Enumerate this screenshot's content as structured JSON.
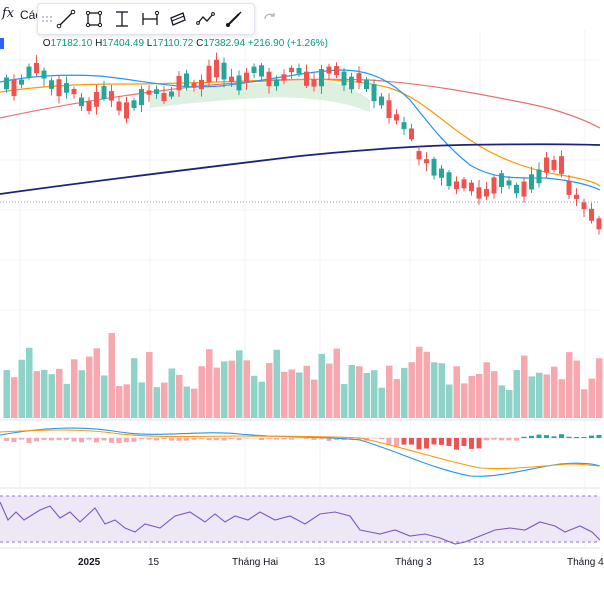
{
  "toolbar": {
    "fx_label": "fx",
    "tab_label": "Các",
    "tools": [
      "trend-line-icon",
      "rectangle-icon",
      "vertical-range-icon",
      "horizontal-range-icon",
      "parallel-channel-icon",
      "path-icon",
      "brush-icon"
    ],
    "redo_icon": "redo-icon"
  },
  "ohlc": {
    "o_key": "O",
    "o_val": "17182.10",
    "h_key": "H",
    "h_val": "17404.49",
    "l_key": "L",
    "l_val": "17110.72",
    "c_key": "C",
    "c_val": "17382.94",
    "change": "+216.90 (+1.26%)"
  },
  "time_axis": [
    "2025",
    "15",
    "Tháng Hai",
    "13",
    "Tháng 3",
    "13",
    "Tháng 4"
  ],
  "colors": {
    "up": "#26a69a",
    "down": "#ef5350",
    "up_volume": "#8fd3c8",
    "down_volume": "#f7a7ae",
    "ma_fast": "#2196f3",
    "ma_mid": "#ff9800",
    "ma_slow": "#e57373",
    "ma_long": "#1a237e",
    "cloud": "#c8e6c9",
    "rsi": "#7e57c2",
    "rsi_band": "#ede7f6"
  },
  "chart_data": {
    "type": "candlestick",
    "candles_close_trend": [
      10,
      9,
      8,
      10,
      12,
      11,
      13,
      14,
      12,
      11,
      12,
      13,
      11,
      10,
      12,
      14,
      15,
      13,
      12,
      9,
      6,
      4,
      3,
      5,
      4,
      2,
      1,
      0,
      1,
      2,
      4,
      3,
      1,
      0,
      -2
    ]
  }
}
